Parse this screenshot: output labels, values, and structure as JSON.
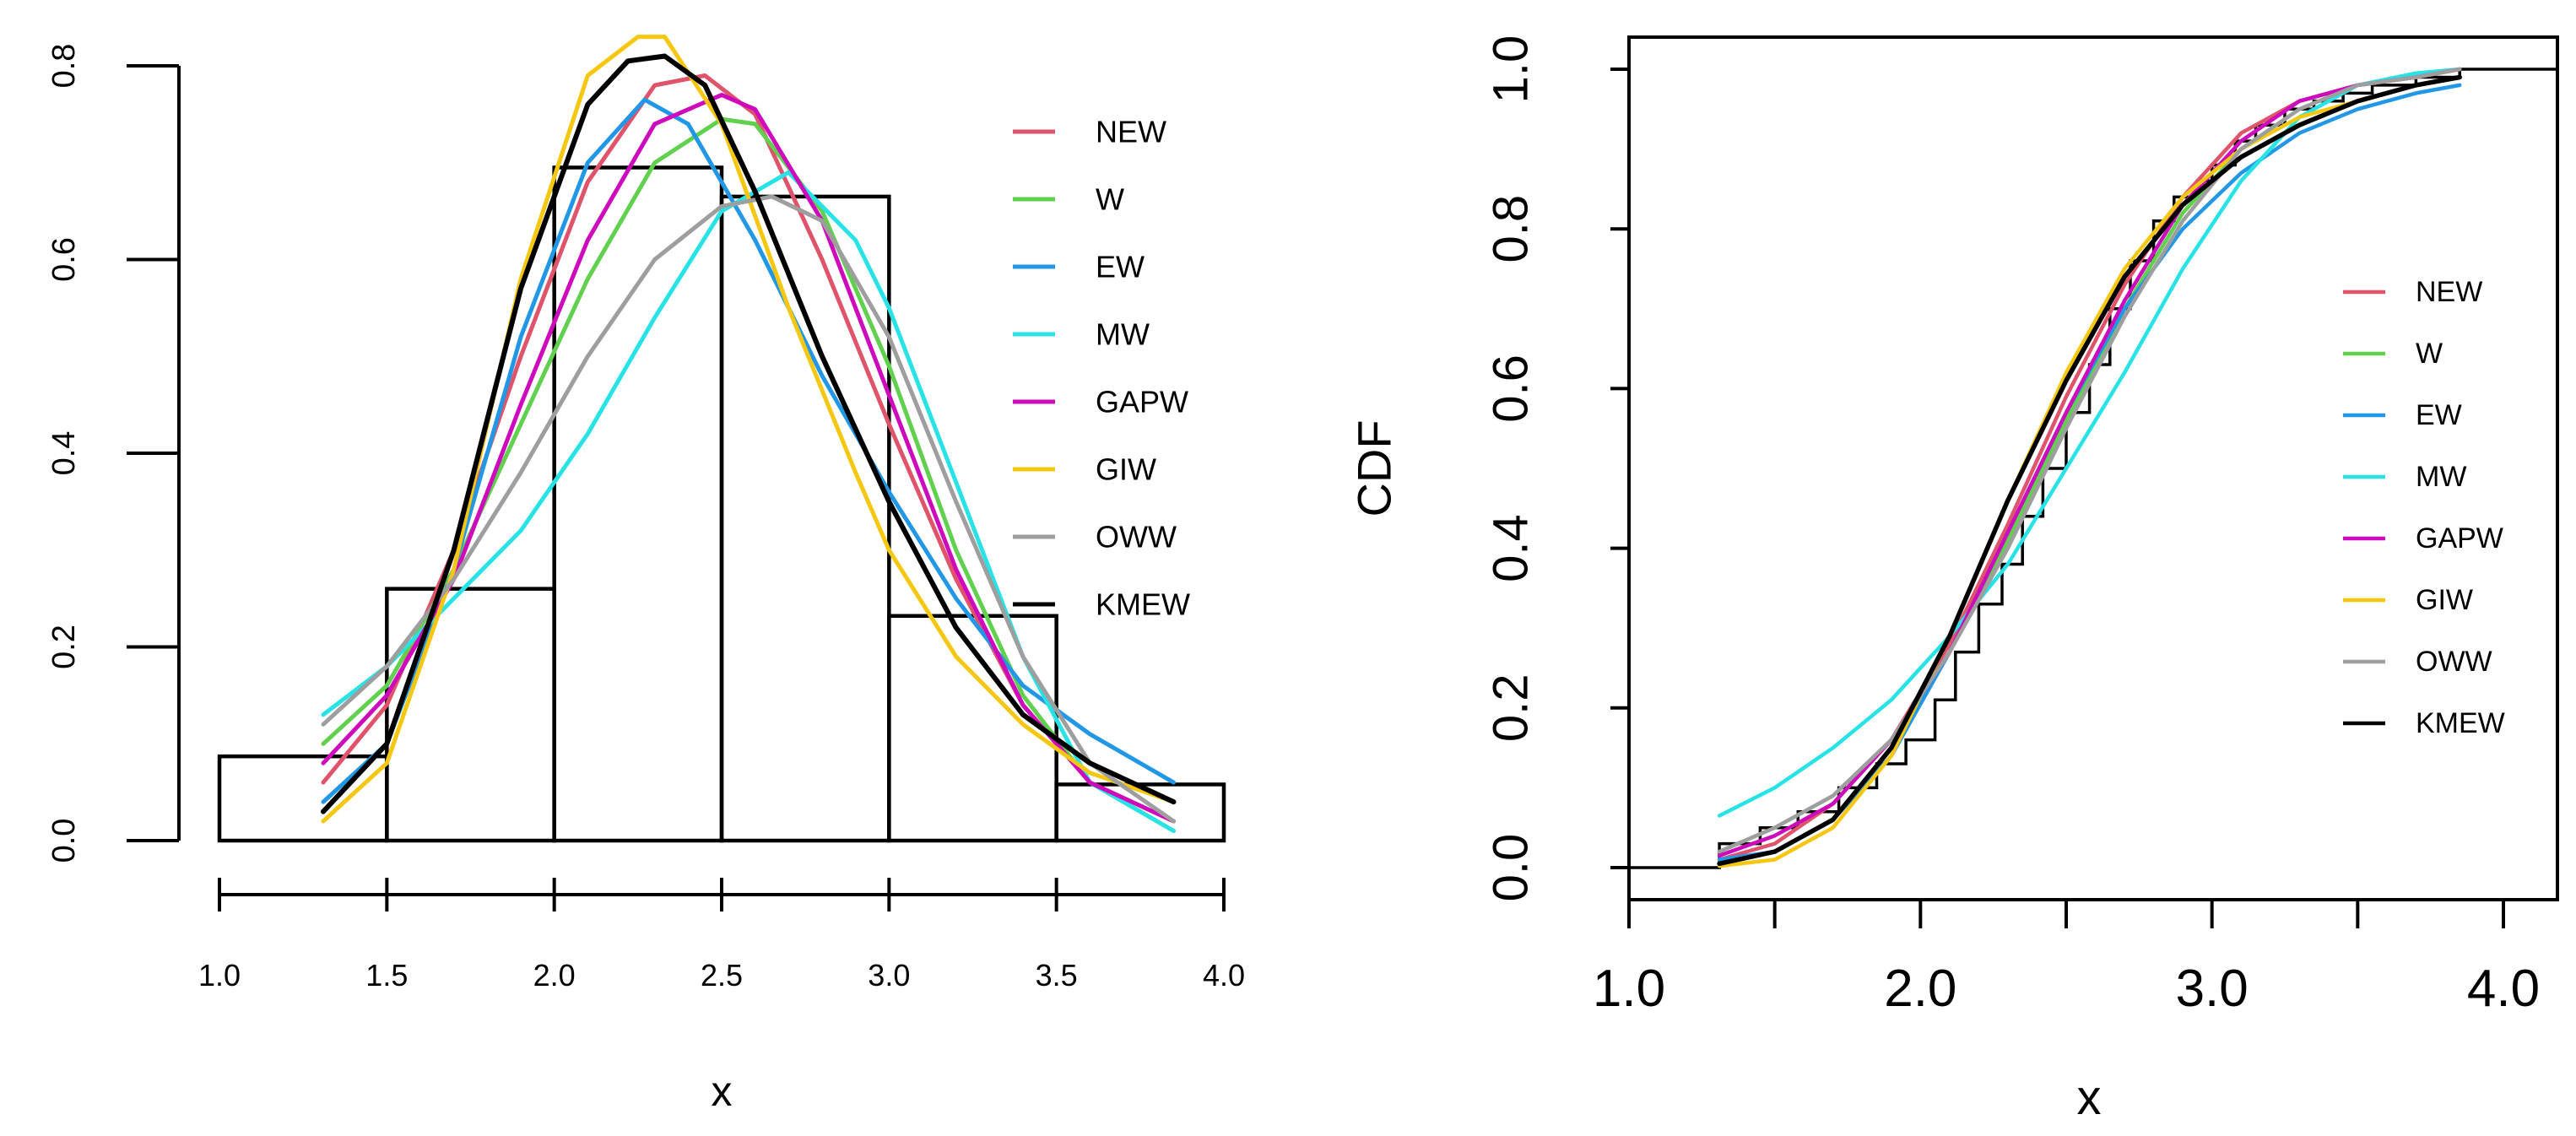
{
  "chart_data": [
    {
      "type": "histogram",
      "title": "",
      "xlabel": "x",
      "ylabel": "",
      "xlim": [
        1.0,
        4.0
      ],
      "ylim": [
        0.0,
        0.8
      ],
      "x_ticks": [
        "1.0",
        "1.5",
        "2.0",
        "2.5",
        "3.0",
        "3.5",
        "4.0"
      ],
      "y_ticks": [
        "0.0",
        "0.2",
        "0.4",
        "0.6",
        "0.8"
      ],
      "legend_position": "top-right",
      "bins": [
        {
          "start": 1.0,
          "end": 1.5,
          "density": 0.087
        },
        {
          "start": 1.5,
          "end": 2.0,
          "density": 0.26
        },
        {
          "start": 2.0,
          "end": 2.5,
          "density": 0.695
        },
        {
          "start": 2.5,
          "end": 3.0,
          "density": 0.665
        },
        {
          "start": 3.0,
          "end": 3.5,
          "density": 0.232
        },
        {
          "start": 3.5,
          "end": 4.0,
          "density": 0.058
        }
      ],
      "series": [
        {
          "name": "NEW",
          "color": "#df536b",
          "x": [
            1.31,
            1.5,
            1.7,
            1.9,
            2.1,
            2.3,
            2.45,
            2.6,
            2.8,
            3.0,
            3.2,
            3.4,
            3.6,
            3.85
          ],
          "y": [
            0.06,
            0.14,
            0.3,
            0.5,
            0.68,
            0.78,
            0.79,
            0.75,
            0.6,
            0.43,
            0.27,
            0.14,
            0.06,
            0.02
          ]
        },
        {
          "name": "W",
          "color": "#61d04f",
          "x": [
            1.31,
            1.5,
            1.7,
            1.9,
            2.1,
            2.3,
            2.5,
            2.6,
            2.8,
            3.0,
            3.2,
            3.4,
            3.6,
            3.85
          ],
          "y": [
            0.1,
            0.16,
            0.28,
            0.43,
            0.58,
            0.7,
            0.745,
            0.74,
            0.65,
            0.49,
            0.3,
            0.15,
            0.06,
            0.01
          ]
        },
        {
          "name": "EW",
          "color": "#2297e6",
          "x": [
            1.31,
            1.5,
            1.7,
            1.9,
            2.1,
            2.27,
            2.4,
            2.6,
            2.8,
            3.0,
            3.2,
            3.4,
            3.6,
            3.85
          ],
          "y": [
            0.04,
            0.1,
            0.28,
            0.52,
            0.7,
            0.765,
            0.74,
            0.62,
            0.48,
            0.36,
            0.25,
            0.16,
            0.11,
            0.06
          ]
        },
        {
          "name": "MW",
          "color": "#28e2e5",
          "x": [
            1.31,
            1.5,
            1.7,
            1.9,
            2.1,
            2.3,
            2.5,
            2.7,
            2.9,
            3.0,
            3.2,
            3.4,
            3.6,
            3.85
          ],
          "y": [
            0.13,
            0.18,
            0.25,
            0.32,
            0.42,
            0.54,
            0.65,
            0.69,
            0.62,
            0.55,
            0.37,
            0.19,
            0.06,
            0.01
          ]
        },
        {
          "name": "GAPW",
          "color": "#cd0bbc",
          "x": [
            1.31,
            1.5,
            1.7,
            1.9,
            2.1,
            2.3,
            2.5,
            2.6,
            2.8,
            3.0,
            3.2,
            3.4,
            3.6,
            3.85
          ],
          "y": [
            0.08,
            0.15,
            0.27,
            0.45,
            0.62,
            0.74,
            0.77,
            0.755,
            0.64,
            0.46,
            0.28,
            0.14,
            0.06,
            0.02
          ]
        },
        {
          "name": "GIW",
          "color": "#f5c710",
          "x": [
            1.31,
            1.5,
            1.7,
            1.9,
            2.1,
            2.25,
            2.33,
            2.5,
            2.7,
            2.9,
            3.0,
            3.2,
            3.4,
            3.6,
            3.85
          ],
          "y": [
            0.02,
            0.08,
            0.28,
            0.58,
            0.79,
            0.83,
            0.83,
            0.74,
            0.55,
            0.38,
            0.3,
            0.19,
            0.12,
            0.07,
            0.04
          ]
        },
        {
          "name": "OWW",
          "color": "#9e9e9e",
          "x": [
            1.31,
            1.5,
            1.7,
            1.9,
            2.1,
            2.3,
            2.5,
            2.65,
            2.8,
            3.0,
            3.2,
            3.4,
            3.6,
            3.85
          ],
          "y": [
            0.12,
            0.18,
            0.27,
            0.38,
            0.5,
            0.6,
            0.655,
            0.665,
            0.64,
            0.52,
            0.35,
            0.19,
            0.08,
            0.02
          ]
        },
        {
          "name": "KMEW",
          "color": "#000000",
          "x": [
            1.31,
            1.5,
            1.7,
            1.9,
            2.1,
            2.22,
            2.33,
            2.45,
            2.6,
            2.8,
            3.0,
            3.2,
            3.4,
            3.6,
            3.85
          ],
          "y": [
            0.03,
            0.1,
            0.3,
            0.57,
            0.76,
            0.805,
            0.81,
            0.78,
            0.67,
            0.5,
            0.35,
            0.22,
            0.13,
            0.08,
            0.04
          ]
        }
      ]
    },
    {
      "type": "line",
      "title": "",
      "xlabel": "x",
      "ylabel": "CDF",
      "xlim": [
        1.0,
        4.0
      ],
      "ylim": [
        0.0,
        1.0
      ],
      "x_ticks": [
        "1.0",
        "2.0",
        "3.0",
        "4.0"
      ],
      "y_ticks": [
        "0.0",
        "0.2",
        "0.4",
        "0.6",
        "0.8",
        "1.0"
      ],
      "legend_position": "right",
      "empirical_cdf": {
        "x": [
          1.0,
          1.31,
          1.45,
          1.58,
          1.72,
          1.85,
          1.95,
          2.05,
          2.12,
          2.2,
          2.28,
          2.35,
          2.42,
          2.5,
          2.58,
          2.65,
          2.72,
          2.8,
          2.87,
          2.95,
          3.0,
          3.08,
          3.15,
          3.25,
          3.35,
          3.45,
          3.55,
          3.7,
          3.85,
          4.2
        ],
        "y": [
          0.0,
          0.03,
          0.05,
          0.07,
          0.1,
          0.13,
          0.16,
          0.21,
          0.27,
          0.33,
          0.38,
          0.44,
          0.5,
          0.57,
          0.63,
          0.7,
          0.76,
          0.81,
          0.84,
          0.86,
          0.88,
          0.91,
          0.93,
          0.95,
          0.96,
          0.97,
          0.98,
          0.99,
          1.0,
          1.0
        ]
      },
      "series": [
        {
          "name": "NEW",
          "color": "#df536b",
          "x": [
            1.31,
            1.5,
            1.7,
            1.9,
            2.1,
            2.3,
            2.5,
            2.7,
            2.9,
            3.1,
            3.3,
            3.5,
            3.7,
            3.85
          ],
          "y": [
            0.01,
            0.03,
            0.08,
            0.16,
            0.28,
            0.43,
            0.59,
            0.73,
            0.84,
            0.92,
            0.96,
            0.98,
            0.99,
            1.0
          ]
        },
        {
          "name": "W",
          "color": "#61d04f",
          "x": [
            1.31,
            1.5,
            1.7,
            1.9,
            2.1,
            2.3,
            2.5,
            2.7,
            2.9,
            3.1,
            3.3,
            3.5,
            3.7,
            3.85
          ],
          "y": [
            0.02,
            0.05,
            0.09,
            0.16,
            0.27,
            0.41,
            0.56,
            0.7,
            0.82,
            0.9,
            0.95,
            0.98,
            0.99,
            1.0
          ]
        },
        {
          "name": "EW",
          "color": "#2297e6",
          "x": [
            1.31,
            1.5,
            1.7,
            1.9,
            2.1,
            2.3,
            2.5,
            2.7,
            2.9,
            3.1,
            3.3,
            3.5,
            3.7,
            3.85
          ],
          "y": [
            0.01,
            0.02,
            0.06,
            0.14,
            0.27,
            0.42,
            0.57,
            0.7,
            0.8,
            0.87,
            0.92,
            0.95,
            0.97,
            0.98
          ]
        },
        {
          "name": "MW",
          "color": "#28e2e5",
          "x": [
            1.31,
            1.5,
            1.7,
            1.9,
            2.1,
            2.3,
            2.5,
            2.7,
            2.9,
            3.1,
            3.3,
            3.5,
            3.7,
            3.85
          ],
          "y": [
            0.065,
            0.1,
            0.15,
            0.21,
            0.29,
            0.38,
            0.5,
            0.62,
            0.75,
            0.86,
            0.94,
            0.98,
            0.995,
            1.0
          ]
        },
        {
          "name": "GAPW",
          "color": "#cd0bbc",
          "x": [
            1.31,
            1.5,
            1.7,
            1.9,
            2.1,
            2.3,
            2.5,
            2.7,
            2.9,
            3.1,
            3.3,
            3.5,
            3.7,
            3.85
          ],
          "y": [
            0.015,
            0.04,
            0.08,
            0.16,
            0.27,
            0.42,
            0.57,
            0.71,
            0.83,
            0.91,
            0.96,
            0.98,
            0.99,
            1.0
          ]
        },
        {
          "name": "GIW",
          "color": "#f5c710",
          "x": [
            1.31,
            1.5,
            1.7,
            1.9,
            2.1,
            2.3,
            2.5,
            2.7,
            2.9,
            3.1,
            3.3,
            3.5,
            3.7,
            3.85
          ],
          "y": [
            0.002,
            0.01,
            0.05,
            0.14,
            0.29,
            0.46,
            0.62,
            0.75,
            0.84,
            0.9,
            0.94,
            0.96,
            0.98,
            0.99
          ]
        },
        {
          "name": "OWW",
          "color": "#9e9e9e",
          "x": [
            1.31,
            1.5,
            1.7,
            1.9,
            2.1,
            2.3,
            2.5,
            2.7,
            2.9,
            3.1,
            3.3,
            3.5,
            3.7,
            3.85
          ],
          "y": [
            0.02,
            0.05,
            0.09,
            0.16,
            0.27,
            0.4,
            0.55,
            0.69,
            0.81,
            0.9,
            0.95,
            0.98,
            0.99,
            1.0
          ]
        },
        {
          "name": "KMEW",
          "color": "#000000",
          "x": [
            1.31,
            1.5,
            1.7,
            1.9,
            2.1,
            2.3,
            2.5,
            2.7,
            2.9,
            3.1,
            3.3,
            3.5,
            3.7,
            3.85
          ],
          "y": [
            0.005,
            0.02,
            0.06,
            0.15,
            0.29,
            0.46,
            0.61,
            0.74,
            0.83,
            0.89,
            0.93,
            0.96,
            0.98,
            0.99
          ]
        }
      ]
    }
  ]
}
